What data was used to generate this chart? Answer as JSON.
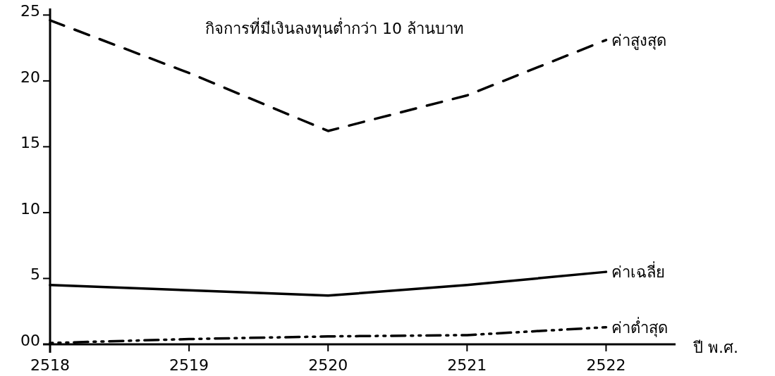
{
  "chart_data": {
    "type": "line",
    "title": "กิจการที่มีเงินลงทุนต่ำกว่า 10 ล้านบาท",
    "xlabel": "ปี พ.ศ.",
    "x": [
      2518,
      2519,
      2520,
      2521,
      2522
    ],
    "xlim": [
      2518,
      2522.5
    ],
    "xticks": [
      2518,
      2519,
      2520,
      2521,
      2522
    ],
    "ylim": [
      0,
      25.5
    ],
    "yticks": [
      {
        "value": 0,
        "label": "00"
      },
      5,
      10,
      15,
      20,
      25
    ],
    "grid": false,
    "marker": "none",
    "series": [
      {
        "name": "ค่าสูงสุด",
        "color": "#000000",
        "line_style": "dashed",
        "values": [
          24.6,
          20.6,
          16.2,
          18.9,
          23.1
        ]
      },
      {
        "name": "ค่าเฉลี่ย",
        "color": "#000000",
        "line_style": "solid",
        "values": [
          4.5,
          4.1,
          3.7,
          4.5,
          5.5
        ]
      },
      {
        "name": "ค่าต่ำสุด",
        "color": "#000000",
        "line_style": "dashdot",
        "values": [
          0.1,
          0.4,
          0.6,
          0.7,
          1.3
        ]
      }
    ]
  }
}
